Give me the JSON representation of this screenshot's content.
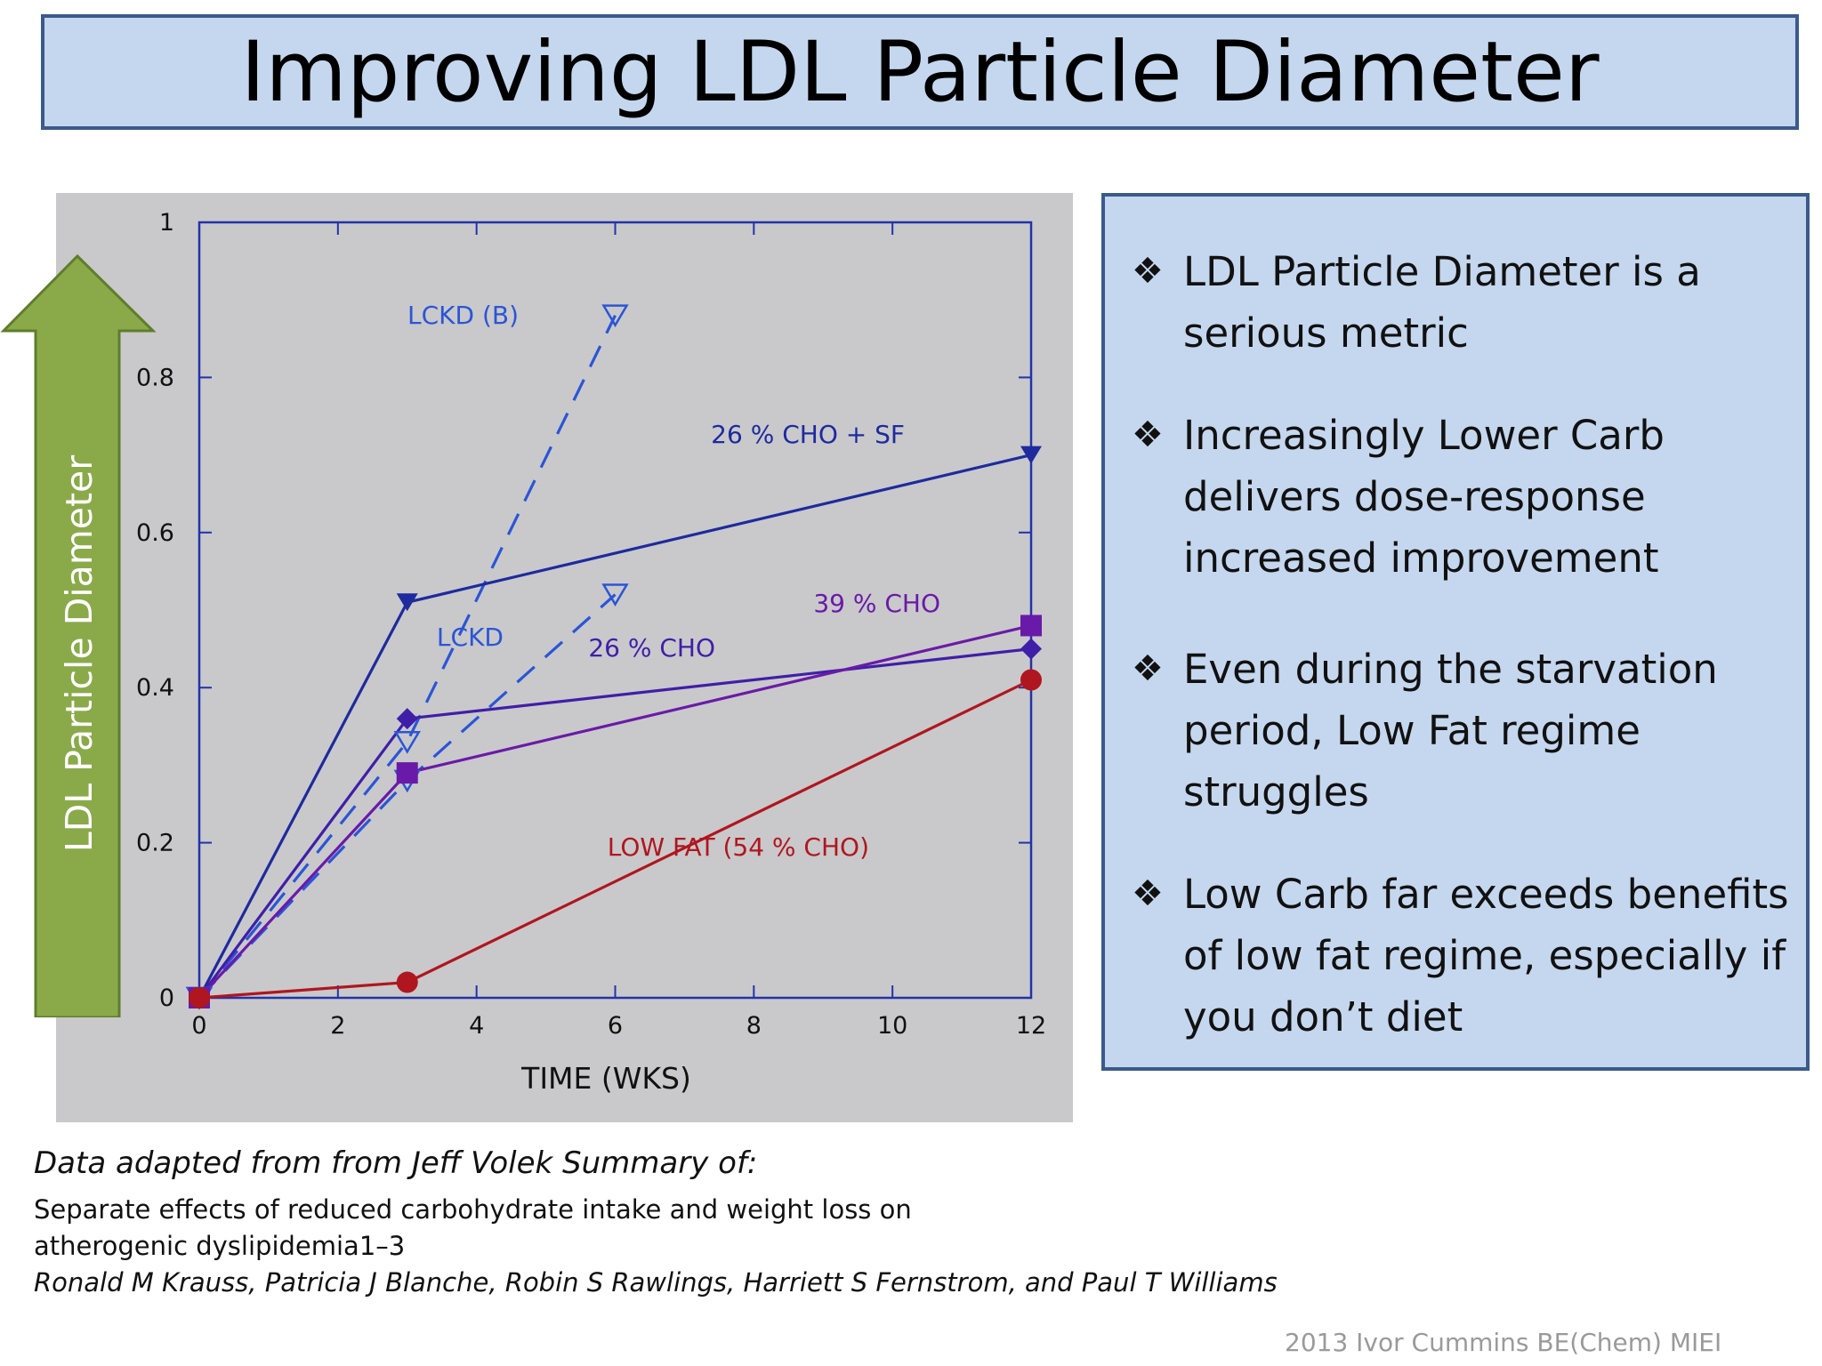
{
  "title": "Improving LDL Particle Diameter",
  "arrow_label": "LDL Particle Diameter",
  "bullets": [
    "LDL Particle Diameter is a serious metric",
    "Increasingly Lower Carb delivers dose-response increased improvement",
    "Even during the starvation period, Low Fat regime struggles",
    "Low Carb far exceeds benefits of low fat regime, especially if you don’t diet"
  ],
  "bullet_icon": "four-diamond-bullet-icon",
  "source": {
    "intro": "Data adapted from from Jeff Volek Summary of:",
    "title": "Separate effects of reduced carbohydrate intake and weight loss on atherogenic dyslipidemia1–3",
    "authors": "Ronald M Krauss, Patricia J Blanche, Robin S Rawlings, Harriett S Fernstrom, and Paul T Williams"
  },
  "copyright": "2013 Ivor Cummins BE(Chem) MIEI",
  "colors": {
    "title_bg": "#c5d7ee",
    "border": "#3b5a8c",
    "chart_bg": "#c9c9cb",
    "arrow": "#8aaa4a",
    "lckd": "#2b55d6",
    "cho26_sf": "#1e2a9e",
    "cho26": "#3f1fa8",
    "cho39": "#6a1aa8",
    "low_fat": "#b0161f"
  },
  "chart_data": {
    "type": "line",
    "xlabel": "TIME (WKS)",
    "ylabel": "",
    "xlim": [
      0,
      12
    ],
    "ylim": [
      0,
      1
    ],
    "x_ticks": [
      "0",
      "2",
      "4",
      "6",
      "8",
      "10",
      "12"
    ],
    "y_ticks": [
      "0",
      "0.2",
      "0.4",
      "0.6",
      "0.8",
      "1"
    ],
    "grid": false,
    "series": [
      {
        "name": "LCKD (B)",
        "x": [
          0,
          3,
          6
        ],
        "y": [
          0,
          0.33,
          0.88
        ],
        "color": "#2b55d6",
        "dashed": true,
        "marker": "open-triangle-down"
      },
      {
        "name": "LCKD",
        "x": [
          0,
          3,
          6
        ],
        "y": [
          0,
          0.28,
          0.52
        ],
        "color": "#2b55d6",
        "dashed": true,
        "marker": "open-triangle-down"
      },
      {
        "name": "26 % CHO + SF",
        "x": [
          0,
          3,
          12
        ],
        "y": [
          0,
          0.51,
          0.7
        ],
        "color": "#1e2a9e",
        "dashed": false,
        "marker": "filled-triangle-down"
      },
      {
        "name": "26 % CHO",
        "x": [
          0,
          3,
          12
        ],
        "y": [
          0,
          0.36,
          0.45
        ],
        "color": "#3f1fa8",
        "dashed": false,
        "marker": "diamond"
      },
      {
        "name": "39 % CHO",
        "x": [
          0,
          3,
          12
        ],
        "y": [
          0,
          0.29,
          0.48
        ],
        "color": "#6a1aa8",
        "dashed": false,
        "marker": "square"
      },
      {
        "name": "LOW FAT (54 % CHO)",
        "x": [
          0,
          3,
          12
        ],
        "y": [
          0,
          0.02,
          0.41
        ],
        "color": "#b0161f",
        "dashed": false,
        "marker": "circle"
      }
    ]
  }
}
